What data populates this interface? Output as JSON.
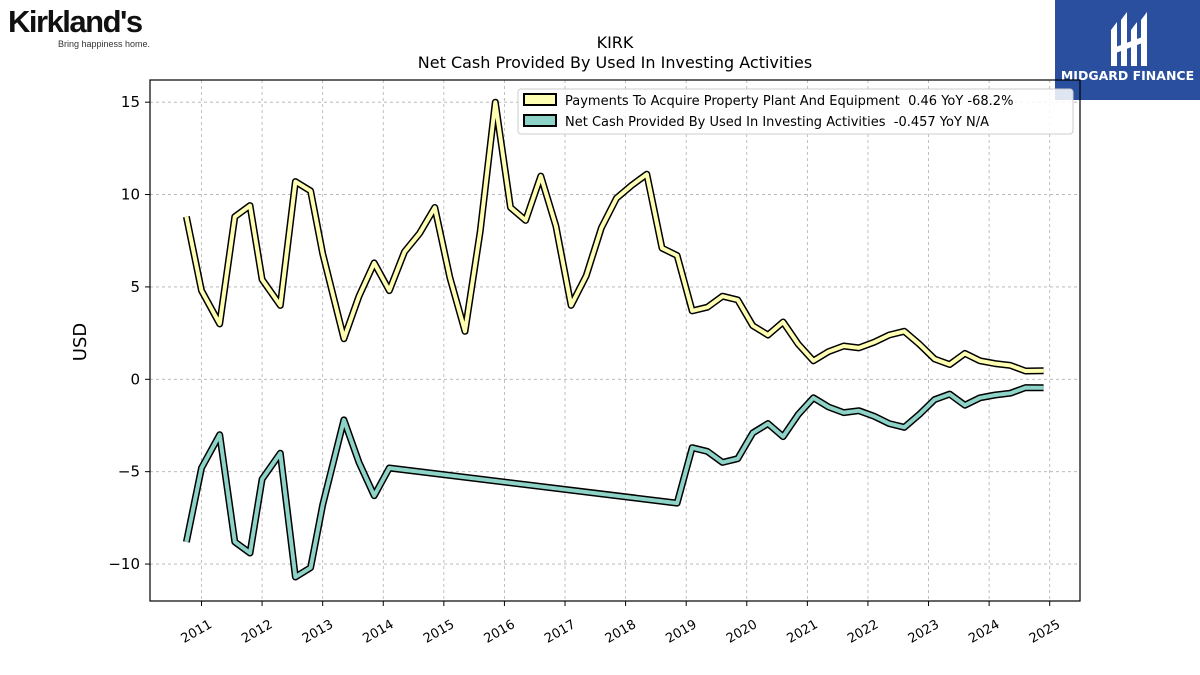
{
  "brand": {
    "name": "Kirkland's",
    "tagline": "Bring happiness home.",
    "watermark": "MIDGARD FINANCE"
  },
  "chart_data": {
    "type": "line",
    "title": "KIRK",
    "subtitle": "Net Cash Provided By Used In Investing Activities",
    "xlabel": "",
    "ylabel": "USD",
    "xlim": [
      2010.15,
      2025.5
    ],
    "ylim": [
      -12,
      16.2
    ],
    "x_ticks": [
      2011,
      2012,
      2013,
      2014,
      2015,
      2016,
      2017,
      2018,
      2019,
      2020,
      2021,
      2022,
      2023,
      2024,
      2025
    ],
    "x_tick_labels": [
      "2011",
      "2012",
      "2013",
      "2014",
      "2015",
      "2016",
      "2017",
      "2018",
      "2019",
      "2020",
      "2021",
      "2022",
      "2023",
      "2024",
      "2025"
    ],
    "y_ticks": [
      -10,
      -5,
      0,
      5,
      10,
      15
    ],
    "y_tick_labels": [
      "−10",
      "−5",
      "0",
      "5",
      "10",
      "15"
    ],
    "grid": true,
    "legend_position": "top-right",
    "series": [
      {
        "name": "Payments To Acquire Property Plant And Equipment  0.46 YoY -68.2%",
        "color": "#ffffb3",
        "points": [
          [
            2010.75,
            8.8
          ],
          [
            2011.0,
            4.8
          ],
          [
            2011.3,
            3.0
          ],
          [
            2011.55,
            8.8
          ],
          [
            2011.8,
            9.4
          ],
          [
            2012.0,
            5.4
          ],
          [
            2012.3,
            4.0
          ],
          [
            2012.55,
            10.7
          ],
          [
            2012.8,
            10.2
          ],
          [
            2013.0,
            6.8
          ],
          [
            2013.35,
            2.2
          ],
          [
            2013.6,
            4.5
          ],
          [
            2013.85,
            6.3
          ],
          [
            2014.1,
            4.8
          ],
          [
            2014.35,
            6.9
          ],
          [
            2014.6,
            7.9
          ],
          [
            2014.85,
            9.3
          ],
          [
            2015.1,
            5.5
          ],
          [
            2015.35,
            2.6
          ],
          [
            2015.6,
            8.0
          ],
          [
            2015.85,
            15.0
          ],
          [
            2016.1,
            9.3
          ],
          [
            2016.35,
            8.6
          ],
          [
            2016.6,
            11.0
          ],
          [
            2016.85,
            8.3
          ],
          [
            2017.1,
            4.0
          ],
          [
            2017.35,
            5.6
          ],
          [
            2017.6,
            8.2
          ],
          [
            2017.85,
            9.8
          ],
          [
            2018.1,
            10.5
          ],
          [
            2018.35,
            11.1
          ],
          [
            2018.6,
            7.1
          ],
          [
            2018.85,
            6.7
          ],
          [
            2019.1,
            3.7
          ],
          [
            2019.35,
            3.9
          ],
          [
            2019.6,
            4.5
          ],
          [
            2019.85,
            4.3
          ],
          [
            2020.1,
            2.9
          ],
          [
            2020.35,
            2.4
          ],
          [
            2020.6,
            3.1
          ],
          [
            2020.85,
            1.9
          ],
          [
            2021.1,
            1.0
          ],
          [
            2021.35,
            1.5
          ],
          [
            2021.6,
            1.8
          ],
          [
            2021.85,
            1.7
          ],
          [
            2022.1,
            2.0
          ],
          [
            2022.35,
            2.4
          ],
          [
            2022.6,
            2.6
          ],
          [
            2022.85,
            1.9
          ],
          [
            2023.1,
            1.1
          ],
          [
            2023.35,
            0.8
          ],
          [
            2023.6,
            1.4
          ],
          [
            2023.85,
            1.0
          ],
          [
            2024.1,
            0.85
          ],
          [
            2024.35,
            0.75
          ],
          [
            2024.6,
            0.45
          ],
          [
            2024.9,
            0.46
          ]
        ]
      },
      {
        "name": "Net Cash Provided By Used In Investing Activities  -0.457 YoY N/A",
        "color": "#8dd3c7",
        "points": [
          [
            2010.75,
            -8.8
          ],
          [
            2011.0,
            -4.8
          ],
          [
            2011.3,
            -3.0
          ],
          [
            2011.55,
            -8.8
          ],
          [
            2011.8,
            -9.4
          ],
          [
            2012.0,
            -5.4
          ],
          [
            2012.3,
            -4.0
          ],
          [
            2012.55,
            -10.7
          ],
          [
            2012.8,
            -10.2
          ],
          [
            2013.0,
            -6.8
          ],
          [
            2013.35,
            -2.2
          ],
          [
            2013.6,
            -4.5
          ],
          [
            2013.85,
            -6.3
          ],
          [
            2014.1,
            -4.8
          ],
          [
            2018.85,
            -6.7
          ],
          [
            2019.1,
            -3.7
          ],
          [
            2019.35,
            -3.9
          ],
          [
            2019.6,
            -4.5
          ],
          [
            2019.85,
            -4.3
          ],
          [
            2020.1,
            -2.9
          ],
          [
            2020.35,
            -2.4
          ],
          [
            2020.6,
            -3.1
          ],
          [
            2020.85,
            -1.9
          ],
          [
            2021.1,
            -1.0
          ],
          [
            2021.35,
            -1.5
          ],
          [
            2021.6,
            -1.8
          ],
          [
            2021.85,
            -1.7
          ],
          [
            2022.1,
            -2.0
          ],
          [
            2022.35,
            -2.4
          ],
          [
            2022.6,
            -2.6
          ],
          [
            2022.85,
            -1.9
          ],
          [
            2023.1,
            -1.1
          ],
          [
            2023.35,
            -0.8
          ],
          [
            2023.6,
            -1.4
          ],
          [
            2023.85,
            -1.0
          ],
          [
            2024.1,
            -0.85
          ],
          [
            2024.35,
            -0.75
          ],
          [
            2024.6,
            -0.45
          ],
          [
            2024.9,
            -0.457
          ]
        ]
      }
    ]
  }
}
